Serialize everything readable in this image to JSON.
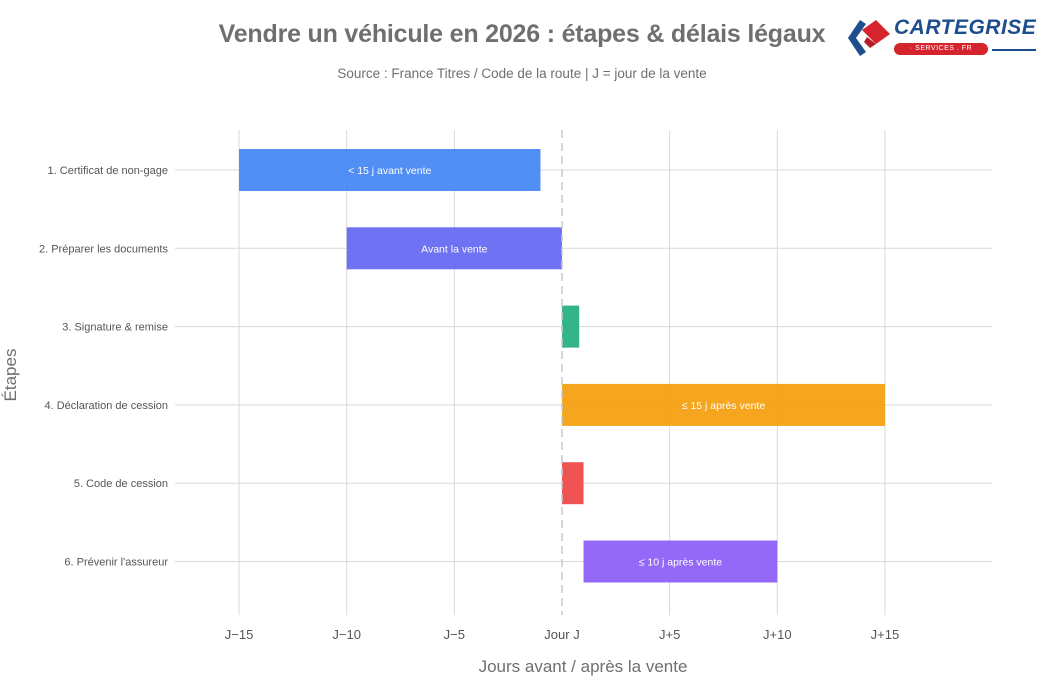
{
  "title": "Vendre un véhicule en 2026 : étapes & délais légaux",
  "subtitle": "Source : France Titres / Code de la route | J = jour de la vente",
  "logo": {
    "name": "CARTEGRISE",
    "tagline": "· SERVICES . FR",
    "colors": [
      "#1f4e8c",
      "#d6242f"
    ]
  },
  "chart_data": {
    "type": "bar",
    "orientation": "horizontal-range",
    "xlabel": "Jours avant / après la vente",
    "ylabel": "Étapes",
    "xlim": [
      -17,
      20
    ],
    "xticks": [
      {
        "value": -15,
        "label": "J−15"
      },
      {
        "value": -10,
        "label": "J−10"
      },
      {
        "value": -5,
        "label": "J−5"
      },
      {
        "value": 0,
        "label": "Jour J"
      },
      {
        "value": 5,
        "label": "J+5"
      },
      {
        "value": 10,
        "label": "J+10"
      },
      {
        "value": 15,
        "label": "J+15"
      }
    ],
    "reference_line": {
      "x": 0,
      "style": "dashed"
    },
    "grid": true,
    "categories": [
      "1. Certificat de non-gage",
      "2. Préparer les documents",
      "3. Signature & remise",
      "4. Déclaration de cession",
      "5. Code de cession",
      "6. Prévenir l'assureur"
    ],
    "bars": [
      {
        "start": -15,
        "end": -1,
        "label": "< 15 j avant vente",
        "color": "#4285f4"
      },
      {
        "start": -10,
        "end": 0,
        "label": "Avant la vente",
        "color": "#6366f1"
      },
      {
        "start": 0,
        "end": 0.8,
        "label": "",
        "color": "#22b07d"
      },
      {
        "start": 0,
        "end": 15,
        "label": "≤ 15 j après vente",
        "color": "#f59e0b"
      },
      {
        "start": 0,
        "end": 1,
        "label": "",
        "color": "#ef4444"
      },
      {
        "start": 1,
        "end": 10,
        "label": "≤ 10 j après vente",
        "color": "#8b5cf6"
      }
    ]
  }
}
